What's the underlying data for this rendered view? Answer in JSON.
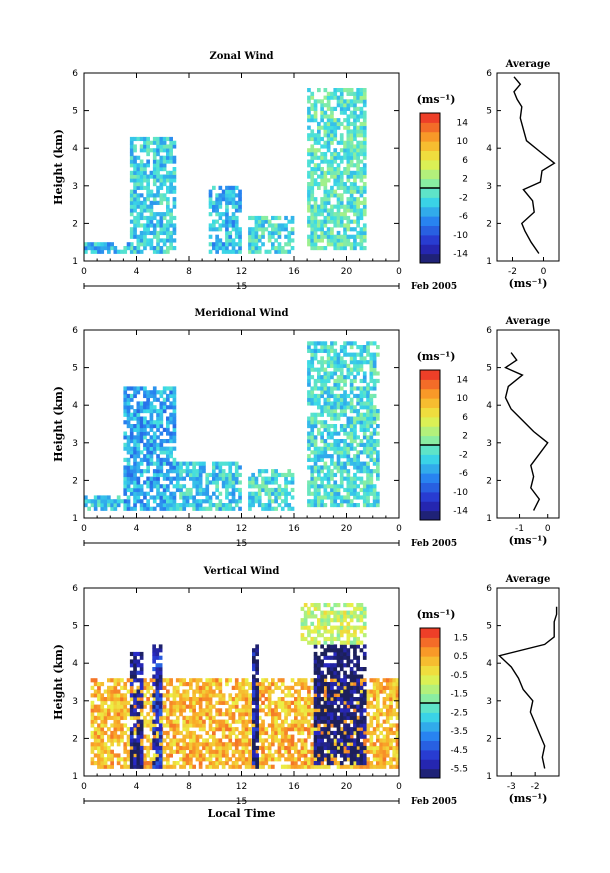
{
  "chart_data": [
    {
      "type": "heatmap",
      "title": "Zonal Wind",
      "ylabel": "Height (km)",
      "ylim": [
        1,
        6
      ],
      "xlim": [
        0,
        24
      ],
      "x_ticks": [
        "0",
        "4",
        "8",
        "12",
        "16",
        "20",
        "0"
      ],
      "y_ticks": [
        "1",
        "2",
        "3",
        "4",
        "5",
        "6"
      ],
      "date_day": "15",
      "date_label": "Feb 2005",
      "colorbar": {
        "unit": "(ms⁻¹)",
        "ticks": [
          "14",
          "10",
          "6",
          "2",
          "-2",
          "-6",
          "-10",
          "-14"
        ],
        "min": -16,
        "max": 16
      },
      "regions": [
        {
          "x": [
            3.5,
            7.0
          ],
          "y": [
            1.2,
            4.3
          ],
          "value": -3
        },
        {
          "x": [
            9.5,
            12.0
          ],
          "y": [
            1.2,
            3.0
          ],
          "value": -4
        },
        {
          "x": [
            12.5,
            16.0
          ],
          "y": [
            1.2,
            2.2
          ],
          "value": -2
        },
        {
          "x": [
            17.0,
            21.5
          ],
          "y": [
            1.3,
            5.5
          ],
          "value": -1
        },
        {
          "x": [
            0.0,
            3.5
          ],
          "y": [
            1.2,
            1.5
          ],
          "value": -4
        }
      ],
      "average": {
        "title": "Average",
        "xlabel": "(ms⁻¹)",
        "xlim": [
          -3,
          1
        ],
        "x_ticks": [
          "-2",
          "0"
        ],
        "height": [
          1.2,
          1.5,
          1.8,
          2.0,
          2.3,
          2.6,
          2.9,
          3.1,
          3.4,
          3.6,
          3.9,
          4.2,
          4.5,
          4.8,
          5.1,
          5.3,
          5.5,
          5.7,
          5.9
        ],
        "value": [
          -0.3,
          -0.8,
          -1.2,
          -1.4,
          -0.6,
          -0.7,
          -1.3,
          -0.2,
          -0.1,
          0.7,
          -0.2,
          -1.1,
          -1.3,
          -1.5,
          -1.4,
          -1.7,
          -1.9,
          -1.5,
          -1.9
        ]
      }
    },
    {
      "type": "heatmap",
      "title": "Meridional Wind",
      "ylabel": "Height (km)",
      "ylim": [
        1,
        6
      ],
      "xlim": [
        0,
        24
      ],
      "x_ticks": [
        "0",
        "4",
        "8",
        "12",
        "16",
        "20",
        "0"
      ],
      "y_ticks": [
        "1",
        "2",
        "3",
        "4",
        "5",
        "6"
      ],
      "date_day": "15",
      "date_label": "Feb 2005",
      "colorbar": {
        "unit": "(ms⁻¹)",
        "ticks": [
          "14",
          "10",
          "6",
          "2",
          "-2",
          "-6",
          "-10",
          "-14"
        ],
        "min": -16,
        "max": 16
      },
      "regions": [
        {
          "x": [
            3.0,
            7.0
          ],
          "y": [
            1.2,
            4.5
          ],
          "value": -5
        },
        {
          "x": [
            7.0,
            12.0
          ],
          "y": [
            1.2,
            2.5
          ],
          "value": -3
        },
        {
          "x": [
            12.5,
            16.0
          ],
          "y": [
            1.2,
            2.3
          ],
          "value": -2
        },
        {
          "x": [
            17.0,
            22.5
          ],
          "y": [
            1.3,
            5.6
          ],
          "value": -2
        },
        {
          "x": [
            0.0,
            3.0
          ],
          "y": [
            1.2,
            1.6
          ],
          "value": -3
        }
      ],
      "average": {
        "title": "Average",
        "xlabel": "(ms⁻¹)",
        "xlim": [
          -1.8,
          0.4
        ],
        "x_ticks": [
          "-1",
          "0"
        ],
        "height": [
          1.2,
          1.5,
          1.8,
          2.1,
          2.4,
          2.7,
          3.0,
          3.3,
          3.6,
          3.9,
          4.2,
          4.5,
          4.8,
          5.0,
          5.2,
          5.4
        ],
        "value": [
          -0.5,
          -0.3,
          -0.6,
          -0.5,
          -0.6,
          -0.3,
          0.0,
          -0.5,
          -0.9,
          -1.3,
          -1.5,
          -1.4,
          -0.9,
          -1.5,
          -1.1,
          -1.3
        ]
      }
    },
    {
      "type": "heatmap",
      "title": "Vertical Wind",
      "xlabel": "Local Time",
      "ylabel": "Height (km)",
      "ylim": [
        1,
        6
      ],
      "xlim": [
        0,
        24
      ],
      "x_ticks": [
        "0",
        "4",
        "8",
        "12",
        "16",
        "20",
        "0"
      ],
      "y_ticks": [
        "1",
        "2",
        "3",
        "4",
        "5",
        "6"
      ],
      "date_day": "15",
      "date_label": "Feb 2005",
      "colorbar": {
        "unit": "(ms⁻¹)",
        "ticks": [
          "1.5",
          "0.5",
          "-0.5",
          "-1.5",
          "-2.5",
          "-3.5",
          "-4.5",
          "-5.5"
        ],
        "min": -6.0,
        "max": 2.0
      },
      "regions": [
        {
          "x": [
            0.5,
            24.0
          ],
          "y": [
            1.2,
            3.6
          ],
          "value": 0.3
        },
        {
          "x": [
            3.5,
            4.3
          ],
          "y": [
            1.2,
            4.3
          ],
          "value": -5.5
        },
        {
          "x": [
            5.2,
            5.8
          ],
          "y": [
            1.2,
            4.5
          ],
          "value": -5.0
        },
        {
          "x": [
            12.8,
            13.3
          ],
          "y": [
            1.2,
            4.5
          ],
          "value": -5.5
        },
        {
          "x": [
            17.5,
            21.5
          ],
          "y": [
            1.3,
            4.5
          ],
          "value": -5.9
        },
        {
          "x": [
            16.5,
            21.5
          ],
          "y": [
            4.5,
            5.5
          ],
          "value": -1.0
        }
      ],
      "average": {
        "title": "Average",
        "xlabel": "(ms⁻¹)",
        "xlim": [
          -3.6,
          -1.0
        ],
        "x_ticks": [
          "-3",
          "-2"
        ],
        "height": [
          1.2,
          1.5,
          1.8,
          2.1,
          2.4,
          2.7,
          3.0,
          3.3,
          3.6,
          3.9,
          4.2,
          4.5,
          4.7,
          4.9,
          5.1,
          5.3,
          5.5
        ],
        "value": [
          -1.6,
          -1.7,
          -1.6,
          -1.8,
          -2.0,
          -2.2,
          -2.1,
          -2.5,
          -2.7,
          -3.0,
          -3.5,
          -1.6,
          -1.2,
          -1.2,
          -1.2,
          -1.1,
          -1.1
        ]
      }
    }
  ]
}
